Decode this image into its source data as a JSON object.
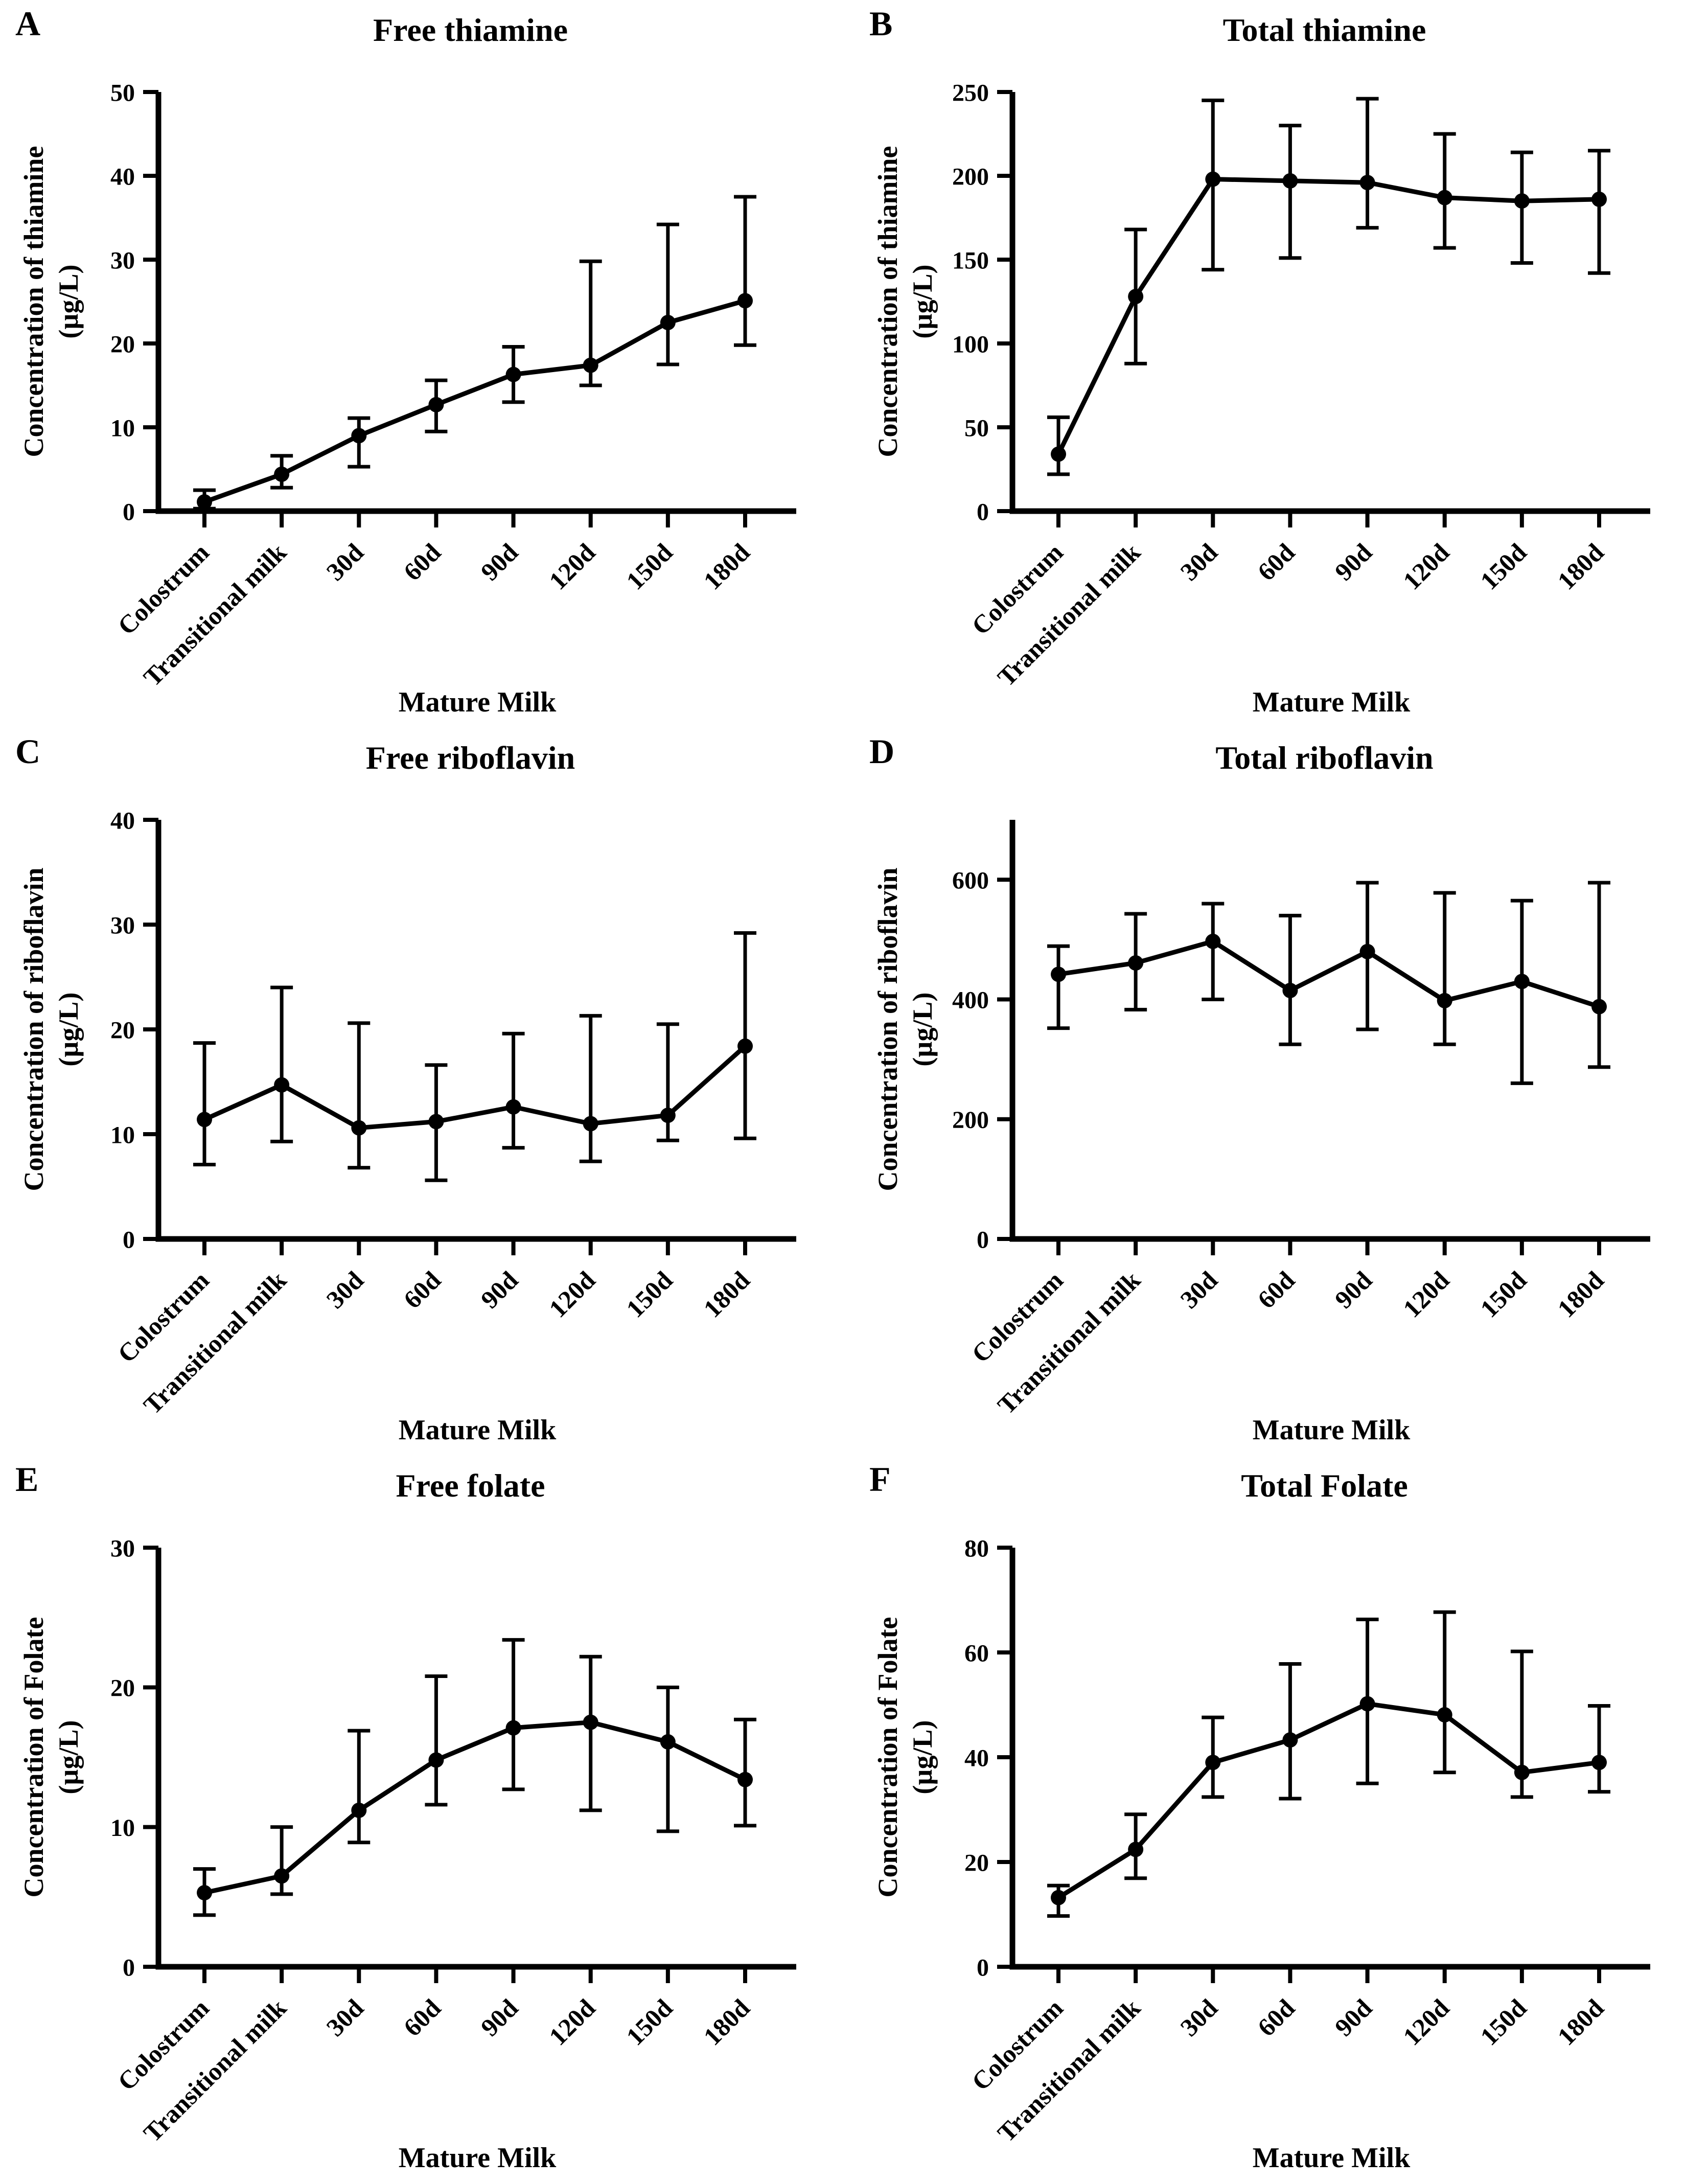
{
  "figure": {
    "background_color": "#ffffff",
    "ink_color": "#000000",
    "panel_letters": [
      "A",
      "B",
      "C",
      "D",
      "E",
      "F"
    ]
  },
  "chart_data": [
    {
      "type": "line",
      "panel_letter": "A",
      "title": "Free thiamine",
      "ylabel": "Concentration of thiamine (µg/L)",
      "ylabel_lines": [
        "Concentration of thiamine",
        "(µg/L)"
      ],
      "xlabel": "Mature Milk",
      "categories": [
        "Colostrum",
        "Transitional milk",
        "30d",
        "60d",
        "90d",
        "120d",
        "150d",
        "180d"
      ],
      "values": [
        1.1,
        4.4,
        9.0,
        12.7,
        16.3,
        17.4,
        22.5,
        25.1
      ],
      "error_low": [
        0.3,
        2.8,
        5.3,
        9.5,
        13.0,
        15.0,
        17.5,
        19.8
      ],
      "error_high": [
        2.5,
        6.6,
        11.1,
        15.6,
        19.6,
        29.8,
        34.2,
        37.5
      ],
      "yticks": [
        0,
        10,
        20,
        30,
        40,
        50
      ],
      "ylim": [
        0,
        50
      ],
      "legend": "none",
      "grid": "off",
      "marker": "filled-circle",
      "color": "#000000"
    },
    {
      "type": "line",
      "panel_letter": "B",
      "title": "Total thiamine",
      "ylabel": "Concentration of thiamine (µg/L)",
      "ylabel_lines": [
        "Concentration of thiamine",
        "(µg/L)"
      ],
      "xlabel": "Mature Milk",
      "categories": [
        "Colostrum",
        "Transitional milk",
        "30d",
        "60d",
        "90d",
        "120d",
        "150d",
        "180d"
      ],
      "values": [
        34,
        128,
        198,
        197,
        196,
        187,
        185,
        186
      ],
      "error_low": [
        22,
        88,
        144,
        151,
        169,
        157,
        148,
        142
      ],
      "error_high": [
        56,
        168,
        245,
        230,
        246,
        225,
        214,
        215
      ],
      "yticks": [
        0,
        50,
        100,
        150,
        200,
        250
      ],
      "ylim": [
        0,
        250
      ],
      "legend": "none",
      "grid": "off",
      "marker": "filled-circle",
      "color": "#000000"
    },
    {
      "type": "line",
      "panel_letter": "C",
      "title": "Free riboflavin",
      "ylabel": "Concentration of riboflavin (µg/L)",
      "ylabel_lines": [
        "Concentration of riboflavin",
        "(µg/L)"
      ],
      "xlabel": "Mature Milk",
      "categories": [
        "Colostrum",
        "Transitional milk",
        "30d",
        "60d",
        "90d",
        "120d",
        "150d",
        "180d"
      ],
      "values": [
        11.4,
        14.7,
        10.6,
        11.2,
        12.6,
        11.0,
        11.8,
        18.4
      ],
      "error_low": [
        7.1,
        9.3,
        6.8,
        5.6,
        8.7,
        7.4,
        9.4,
        9.6
      ],
      "error_high": [
        18.7,
        24.0,
        20.6,
        16.6,
        19.6,
        21.3,
        20.5,
        29.2
      ],
      "yticks": [
        0,
        10,
        20,
        30,
        40
      ],
      "ylim": [
        0,
        40
      ],
      "legend": "none",
      "grid": "off",
      "marker": "filled-circle",
      "color": "#000000"
    },
    {
      "type": "line",
      "panel_letter": "D",
      "title": "Total riboflavin",
      "ylabel": "Concentration of riboflavin (µg/L)",
      "ylabel_lines": [
        "Concentration of riboflavin",
        "(µg/L)"
      ],
      "xlabel": "Mature Milk",
      "categories": [
        "Colostrum",
        "Transitional milk",
        "30d",
        "60d",
        "90d",
        "120d",
        "150d",
        "180d"
      ],
      "values": [
        442,
        461,
        497,
        415,
        480,
        398,
        430,
        388
      ],
      "error_low": [
        352,
        383,
        400,
        325,
        350,
        325,
        260,
        287
      ],
      "error_high": [
        489,
        543,
        560,
        540,
        595,
        578,
        565,
        595
      ],
      "yticks": [
        0,
        200,
        400,
        600
      ],
      "ylim": [
        0,
        700
      ],
      "legend": "none",
      "grid": "off",
      "marker": "filled-circle",
      "color": "#000000"
    },
    {
      "type": "line",
      "panel_letter": "E",
      "title": "Free folate",
      "ylabel": "Concentration of Folate (µg/L)",
      "ylabel_lines": [
        "Concentration of Folate",
        "(µg/L)"
      ],
      "xlabel": "Mature Milk",
      "categories": [
        "Colostrum",
        "Transitional milk",
        "30d",
        "60d",
        "90d",
        "120d",
        "150d",
        "180d"
      ],
      "values": [
        5.3,
        6.5,
        11.2,
        14.8,
        17.1,
        17.5,
        16.1,
        13.4
      ],
      "error_low": [
        3.7,
        5.2,
        8.9,
        11.6,
        12.7,
        11.2,
        9.7,
        10.1
      ],
      "error_high": [
        7.0,
        10.0,
        16.9,
        20.8,
        23.4,
        22.2,
        20.0,
        17.7
      ],
      "yticks": [
        0,
        10,
        20,
        30
      ],
      "ylim": [
        0,
        30
      ],
      "legend": "none",
      "grid": "off",
      "marker": "filled-circle",
      "color": "#000000"
    },
    {
      "type": "line",
      "panel_letter": "F",
      "title": "Total Folate",
      "ylabel": "Concentration of Folate (µg/L)",
      "ylabel_lines": [
        "Concentration of Folate",
        "(µg/L)"
      ],
      "xlabel": "Mature Milk",
      "categories": [
        "Colostrum",
        "Transitional milk",
        "30d",
        "60d",
        "90d",
        "120d",
        "150d",
        "180d"
      ],
      "values": [
        13.2,
        22.4,
        39.0,
        43.3,
        50.2,
        48.1,
        37.1,
        39.0
      ],
      "error_low": [
        9.7,
        16.9,
        32.4,
        32.1,
        35.0,
        37.1,
        32.4,
        33.4
      ],
      "error_high": [
        15.5,
        29.1,
        47.6,
        57.8,
        66.3,
        67.7,
        60.2,
        49.8
      ],
      "yticks": [
        0,
        20,
        40,
        60,
        80
      ],
      "ylim": [
        0,
        80
      ],
      "legend": "none",
      "grid": "off",
      "marker": "filled-circle",
      "color": "#000000"
    }
  ]
}
